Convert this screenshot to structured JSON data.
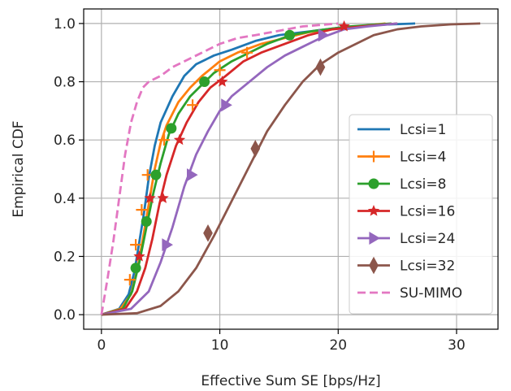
{
  "chart_data": {
    "type": "line",
    "title": "",
    "xlabel": "Effective Sum SE [bps/Hz]",
    "ylabel": "Empirical CDF",
    "xlim": [
      -1.5,
      33.5
    ],
    "ylim": [
      -0.05,
      1.05
    ],
    "xticks": [
      0,
      10,
      20,
      30
    ],
    "yticks": [
      0.0,
      0.2,
      0.4,
      0.6,
      0.8,
      1.0
    ],
    "xtick_labels": [
      "0",
      "10",
      "20",
      "30"
    ],
    "ytick_labels": [
      "0.0",
      "0.2",
      "0.4",
      "0.6",
      "0.8",
      "1.0"
    ],
    "grid": true,
    "legend_position": "lower-right",
    "series": [
      {
        "name": "Lcsi=1",
        "color": "#1f77b4",
        "linestyle": "solid",
        "marker": "none",
        "x": [
          0,
          1.5,
          2.3,
          2.8,
          3.2,
          3.6,
          4.0,
          4.5,
          5.0,
          6.0,
          7.0,
          8.0,
          9.5,
          11.0,
          13.0,
          15.0,
          17.0,
          20.0,
          23.0,
          26.5
        ],
        "y": [
          0,
          0.02,
          0.07,
          0.15,
          0.25,
          0.35,
          0.47,
          0.58,
          0.66,
          0.75,
          0.82,
          0.86,
          0.89,
          0.91,
          0.94,
          0.96,
          0.97,
          0.985,
          0.995,
          1.0
        ],
        "marker_x": [],
        "marker_y": []
      },
      {
        "name": "Lcsi=4",
        "color": "#ff7f0e",
        "linestyle": "solid",
        "marker": "plus",
        "x": [
          0,
          1.6,
          2.5,
          3.0,
          3.5,
          4.0,
          4.5,
          5.0,
          5.5,
          6.5,
          7.5,
          8.5,
          10.0,
          11.5,
          13.5,
          15.5,
          17.5,
          20.5,
          24.0
        ],
        "y": [
          0,
          0.02,
          0.07,
          0.15,
          0.26,
          0.38,
          0.5,
          0.59,
          0.65,
          0.73,
          0.78,
          0.82,
          0.87,
          0.9,
          0.93,
          0.95,
          0.97,
          0.985,
          1.0
        ],
        "marker_x": [
          2.4,
          2.9,
          3.4,
          3.9,
          5.3,
          7.7,
          10.0,
          12.3
        ],
        "marker_y": [
          0.12,
          0.24,
          0.36,
          0.48,
          0.6,
          0.72,
          0.84,
          0.9
        ]
      },
      {
        "name": "Lcsi=8",
        "color": "#2ca02c",
        "linestyle": "solid",
        "marker": "circle",
        "x": [
          0,
          1.8,
          2.6,
          3.2,
          3.8,
          4.4,
          5.0,
          5.7,
          6.5,
          7.5,
          8.5,
          9.5,
          11.0,
          12.5,
          14.0,
          16.0,
          18.0,
          21.0,
          24.5
        ],
        "y": [
          0,
          0.02,
          0.08,
          0.18,
          0.3,
          0.42,
          0.52,
          0.62,
          0.69,
          0.75,
          0.79,
          0.83,
          0.87,
          0.9,
          0.93,
          0.96,
          0.975,
          0.99,
          1.0
        ],
        "marker_x": [
          2.9,
          3.8,
          4.6,
          5.9,
          8.7,
          15.9
        ],
        "marker_y": [
          0.16,
          0.32,
          0.48,
          0.64,
          0.8,
          0.96
        ]
      },
      {
        "name": "Lcsi=16",
        "color": "#d62728",
        "linestyle": "solid",
        "marker": "star",
        "x": [
          0,
          2.0,
          3.0,
          3.7,
          4.3,
          4.9,
          5.5,
          6.3,
          7.2,
          8.2,
          9.2,
          10.5,
          12.0,
          13.5,
          15.5,
          17.5,
          19.5,
          22.0,
          25.0
        ],
        "y": [
          0,
          0.02,
          0.08,
          0.16,
          0.26,
          0.38,
          0.48,
          0.58,
          0.66,
          0.73,
          0.78,
          0.82,
          0.87,
          0.9,
          0.93,
          0.96,
          0.98,
          0.99,
          1.0
        ],
        "marker_x": [
          3.2,
          4.1,
          5.2,
          6.6,
          10.2,
          20.5
        ],
        "marker_y": [
          0.2,
          0.4,
          0.4,
          0.6,
          0.8,
          0.99
        ]
      },
      {
        "name": "Lcsi=24",
        "color": "#9467bd",
        "linestyle": "solid",
        "marker": "triangle-right",
        "x": [
          0,
          2.5,
          4.0,
          5.0,
          6.0,
          7.0,
          8.0,
          9.0,
          10.0,
          11.0,
          12.5,
          14.0,
          15.5,
          17.0,
          18.5,
          20.5,
          22.5,
          25.0
        ],
        "y": [
          0,
          0.02,
          0.08,
          0.18,
          0.3,
          0.44,
          0.55,
          0.63,
          0.7,
          0.75,
          0.8,
          0.85,
          0.89,
          0.92,
          0.95,
          0.98,
          0.99,
          1.0
        ],
        "marker_x": [
          5.5,
          7.6,
          10.5,
          18.7
        ],
        "marker_y": [
          0.24,
          0.48,
          0.72,
          0.96
        ]
      },
      {
        "name": "Lcsi=32",
        "color": "#8c564b",
        "linestyle": "solid",
        "marker": "thin-diamond",
        "x": [
          0,
          3.0,
          5.0,
          6.5,
          8.0,
          9.5,
          11.0,
          12.5,
          14.0,
          15.5,
          17.0,
          18.5,
          20.0,
          21.5,
          23.0,
          25.0,
          27.0,
          29.5,
          32.0
        ],
        "y": [
          0,
          0.005,
          0.03,
          0.08,
          0.16,
          0.27,
          0.39,
          0.51,
          0.63,
          0.72,
          0.8,
          0.86,
          0.9,
          0.93,
          0.96,
          0.98,
          0.99,
          0.997,
          1.0
        ],
        "marker_x": [
          9.0,
          13.0,
          18.5
        ],
        "marker_y": [
          0.28,
          0.57,
          0.85
        ]
      },
      {
        "name": "SU-MIMO",
        "color": "#e377c2",
        "linestyle": "dashed",
        "marker": "none",
        "x": [
          0,
          0.5,
          1.0,
          1.5,
          2.0,
          2.5,
          3.0,
          3.5,
          4.0,
          5.0,
          6.0,
          7.0,
          8.0,
          9.0,
          10.0,
          11.5,
          13.0,
          15.0,
          17.0,
          20.0
        ],
        "y": [
          0,
          0.12,
          0.25,
          0.4,
          0.55,
          0.66,
          0.73,
          0.78,
          0.8,
          0.82,
          0.85,
          0.87,
          0.89,
          0.91,
          0.93,
          0.95,
          0.96,
          0.975,
          0.99,
          1.0
        ],
        "marker_x": [],
        "marker_y": []
      }
    ]
  }
}
